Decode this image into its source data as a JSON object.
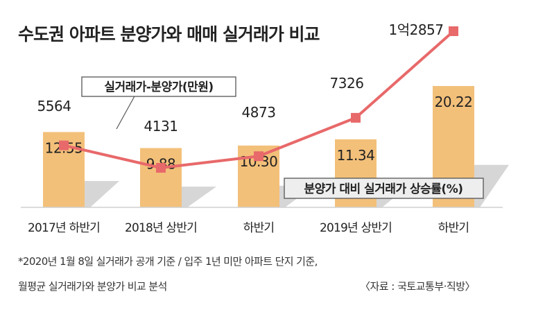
{
  "chart_data": {
    "type": "bar",
    "title": "수도권 아파트 분양가와 매매 실거래가 비교",
    "categories": [
      "2017년 하반기",
      "2018년 상반기",
      "하반기",
      "2019년 상반기",
      "하반기"
    ],
    "series": [
      {
        "name": "분양가 대비 실거래가 상승률(%)",
        "type": "bar",
        "values": [
          12.55,
          9.88,
          10.3,
          11.34,
          20.22
        ],
        "labels": [
          "12.55",
          "9.88",
          "10.30",
          "11.34",
          "20.22"
        ]
      },
      {
        "name": "실거래가-분양가(만원)",
        "type": "line",
        "values": [
          5564,
          4131,
          4873,
          7326,
          12857
        ],
        "labels": [
          "5564",
          "4131",
          "4873",
          "7326",
          "1억2857"
        ]
      }
    ],
    "footnote": [
      "*2020년 1월 8일 실거래가 공개 기준 / 입주 1년 미만 아파트 단지 기준,",
      "월평균 실거래가와 분양가 비교 분석"
    ],
    "source": "〈자료 : 국토교통부·직방〉"
  },
  "colors": {
    "bar": "#f3c07a",
    "shadow": "#d6d6d6",
    "line": "#e8696a",
    "label_box": "#eeeeee"
  }
}
